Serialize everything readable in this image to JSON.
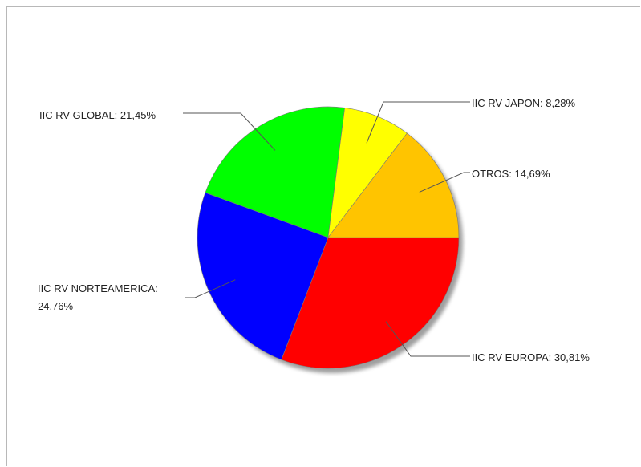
{
  "chart_data": {
    "type": "pie",
    "title": "",
    "slices": [
      {
        "name": "IIC RV EUROPA",
        "value": 30.81,
        "label": "IIC RV EUROPA: 30,81%",
        "color": "#ff0000"
      },
      {
        "name": "IIC RV NORTEAMERICA",
        "value": 24.76,
        "label_lines": [
          "IIC RV NORTEAMERICA:",
          "24,76%"
        ],
        "color": "#0000ff"
      },
      {
        "name": "IIC RV GLOBAL",
        "value": 21.45,
        "label": "IIC RV GLOBAL: 21,45%",
        "color": "#00ff00"
      },
      {
        "name": "IIC RV JAPON",
        "value": 8.28,
        "label": "IIC RV JAPON: 8,28%",
        "color": "#ffff00"
      },
      {
        "name": "OTROS",
        "value": 14.69,
        "label": "OTROS: 14,69%",
        "color": "#ffc400"
      }
    ],
    "start_angle_deg": 0,
    "direction": "clockwise",
    "shadow": true,
    "legend": "none"
  }
}
